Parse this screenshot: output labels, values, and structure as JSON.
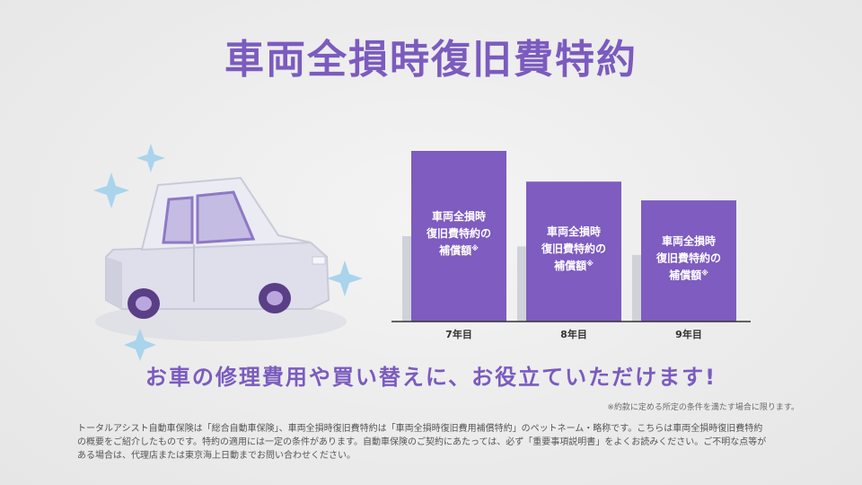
{
  "title": "車両全損時復旧費特約",
  "chart_data": {
    "type": "bar",
    "categories": [
      "7年目",
      "8年目",
      "9年目"
    ],
    "values": [
      100,
      82,
      71
    ],
    "background_values": [
      50,
      44,
      39
    ],
    "bar_label_lines": [
      "車両全損時",
      "復旧費特約の",
      "補償額"
    ],
    "bar_label_mark": "※",
    "bar_color": "#7e5cc0",
    "background_bar_color": "#cfd2d8"
  },
  "headline": "お車の修理費用や買い替えに、お役立ていただけます!",
  "note": "※約款に定める所定の条件を満たす場合に限ります。",
  "footer_lines": [
    "トータルアシスト自動車保険は「総合自動車保険」、車両全損時復旧費特約は「車両全損時復旧費用補償特約」のペットネーム・略称です。こちらは車両全損時復旧費特約",
    "の概要をご紹介したものです。特約の適用には一定の条件があります。自動車保険のご契約にあたっては、必ず「重要事項説明書」をよくお読みください。ご不明な点等が",
    "ある場合は、代理店または東京海上日動までお問い合わせください。"
  ],
  "colors": {
    "accent": "#7b5bbf",
    "car_body": "#e3e3ee",
    "car_window": "#c7bfe3",
    "sparkle": "#a9d4ec"
  },
  "icons": [
    "car-illustration",
    "sparkle-icon"
  ]
}
